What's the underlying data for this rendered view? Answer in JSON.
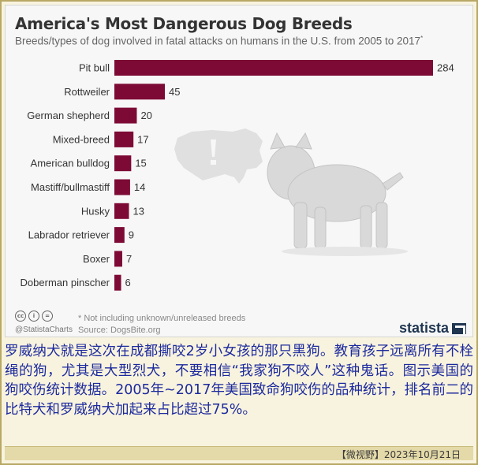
{
  "chart_data": {
    "type": "bar",
    "orientation": "horizontal",
    "title": "America's Most Dangerous Dog Breeds",
    "subtitle": "Breeds/types of dog involved in fatal attacks on humans in the U.S. from 2005 to 2017",
    "subtitle_mark": "*",
    "categories": [
      "Pit bull",
      "Rottweiler",
      "German shepherd",
      "Mixed-breed",
      "American bulldog",
      "Mastiff/bullmastiff",
      "Husky",
      "Labrador retriever",
      "Boxer",
      "Doberman pinscher"
    ],
    "values": [
      284,
      45,
      20,
      17,
      15,
      14,
      13,
      9,
      7,
      6
    ],
    "xlim": [
      0,
      284
    ],
    "bar_color": "#7d0a35",
    "grid": false,
    "legend": "none"
  },
  "footer": {
    "note": "* Not including unknown/unreleased breeds",
    "source": "Source: DogsBite.org",
    "handle": "@StatistaCharts",
    "cc_icons": [
      "cc",
      "i",
      "="
    ],
    "brand": "statista"
  },
  "caption": "罗威纳犬就是这次在成都撕咬2岁小女孩的那只黑狗。教育孩子远离所有不栓绳的狗，尤其是大型烈犬，不要相信“我家狗不咬人”这种鬼话。图示美国的狗咬伤统计数据。2005年~2017年美国致命狗咬伤的品种统计，排名前二的比特犬和罗威纳犬加起来占比超过75%。",
  "date_line": "【微视野】2023年10月21日"
}
